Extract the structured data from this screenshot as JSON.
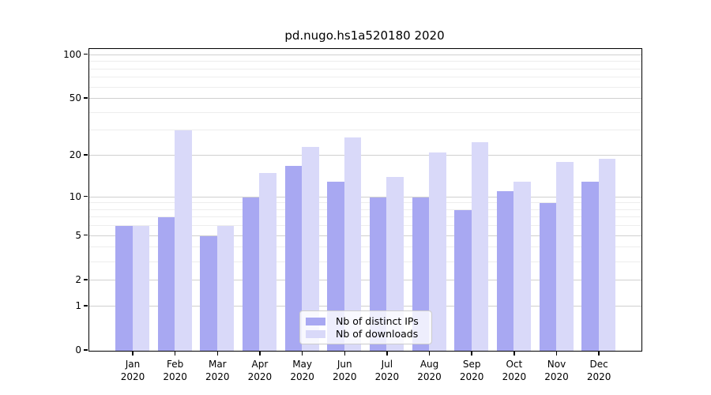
{
  "chart_data": {
    "type": "bar",
    "title": "pd.nugo.hs1a520180 2020",
    "year": "2020",
    "categories": [
      "Jan",
      "Feb",
      "Mar",
      "Apr",
      "May",
      "Jun",
      "Jul",
      "Aug",
      "Sep",
      "Oct",
      "Nov",
      "Dec"
    ],
    "series": [
      {
        "name": "Nb of distinct IPs",
        "color": "#a8a8f2",
        "values": [
          6,
          7,
          5,
          10,
          17,
          13,
          10,
          10,
          8,
          11,
          9,
          13
        ]
      },
      {
        "name": "Nb of downloads",
        "color": "#d9d9f9",
        "values": [
          6,
          30,
          6,
          15,
          23,
          27,
          14,
          21,
          25,
          13,
          18,
          19
        ]
      }
    ],
    "yscale": "log1p",
    "ylim": [
      0,
      110
    ],
    "yticks": [
      0,
      1,
      2,
      5,
      10,
      20,
      50,
      100
    ],
    "minor_gridlines": [
      3,
      4,
      6,
      7,
      8,
      9,
      30,
      40,
      60,
      70,
      80,
      90
    ],
    "grid": true,
    "legend_position": "lower center",
    "colors": {
      "spine": "#000000",
      "major_grid": "#d0d0d0",
      "minor_grid": "#ededed",
      "background": "#ffffff"
    }
  }
}
